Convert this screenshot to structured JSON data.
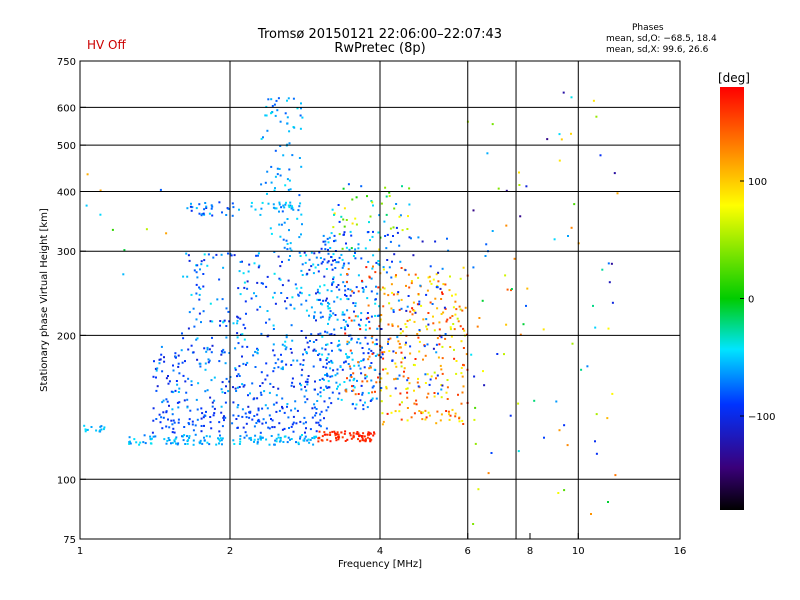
{
  "header": {
    "status": "HV Off",
    "status_color": "#cc0000",
    "title_line1": "Tromsø 20150121 22:06:00–22:07:43",
    "title_line2": "RwPretec (8p)",
    "phases_title": "Phases",
    "phases_line1": "mean, sd,O: −68.5, 18.4",
    "phases_line2": "mean, sd,X:  99.6, 26.6"
  },
  "colorbar": {
    "unit_label": "[deg]",
    "ticks": [
      {
        "value": 100,
        "label": "100"
      },
      {
        "value": 0,
        "label": "0"
      },
      {
        "value": -100,
        "label": "−100"
      }
    ],
    "range": [
      -180,
      180
    ]
  },
  "chart_data": {
    "type": "scatter",
    "xlabel": "Frequency [MHz]",
    "ylabel": "Stationary phase Virtual Height [km]",
    "x_scale": "log",
    "y_scale": "log",
    "xlim": [
      1,
      16
    ],
    "ylim": [
      75,
      750
    ],
    "xticks": [
      {
        "value": 1,
        "label": "1"
      },
      {
        "value": 2,
        "label": "2"
      },
      {
        "value": 4,
        "label": "4"
      },
      {
        "value": 6,
        "label": "6"
      },
      {
        "value": 8,
        "label": "8"
      },
      {
        "value": 10,
        "label": "10"
      },
      {
        "value": 16,
        "label": "16"
      }
    ],
    "yticks": [
      {
        "value": 75,
        "label": "75"
      },
      {
        "value": 100,
        "label": "100"
      },
      {
        "value": 200,
        "label": "200"
      },
      {
        "value": 300,
        "label": "300"
      },
      {
        "value": 400,
        "label": "400"
      },
      {
        "value": 500,
        "label": "500"
      },
      {
        "value": 600,
        "label": "600"
      },
      {
        "value": 750,
        "label": "750"
      }
    ],
    "grid_x": [
      2,
      4,
      6,
      7.5,
      10
    ],
    "grid_y": [
      100,
      200,
      300,
      400,
      500,
      600
    ],
    "grid": true,
    "clusters": [
      {
        "f": [
          1.0,
          1.12
        ],
        "h": [
          125,
          130
        ],
        "phase": [
          -70,
          -40
        ],
        "n": 15
      },
      {
        "f": [
          1.25,
          3.0
        ],
        "h": [
          118,
          124
        ],
        "phase": [
          -75,
          -40
        ],
        "n": 140
      },
      {
        "f": [
          3.0,
          3.9
        ],
        "h": [
          120,
          126
        ],
        "phase": [
          150,
          175
        ],
        "n": 80
      },
      {
        "f": [
          1.4,
          3.2
        ],
        "h": [
          125,
          140
        ],
        "phase": [
          -100,
          -70
        ],
        "n": 130
      },
      {
        "f": [
          1.4,
          3.3
        ],
        "h": [
          140,
          190
        ],
        "phase": [
          -110,
          -50
        ],
        "n": 260
      },
      {
        "f": [
          1.6,
          3.5
        ],
        "h": [
          190,
          300
        ],
        "phase": [
          -110,
          -40
        ],
        "n": 240
      },
      {
        "f": [
          2.3,
          2.8
        ],
        "h": [
          300,
          640
        ],
        "phase": [
          -80,
          -40
        ],
        "n": 90
      },
      {
        "f": [
          1.6,
          2.1
        ],
        "h": [
          355,
          380
        ],
        "phase": [
          -100,
          -50
        ],
        "n": 30
      },
      {
        "f": [
          2.2,
          2.8
        ],
        "h": [
          365,
          380
        ],
        "phase": [
          -70,
          -40
        ],
        "n": 25
      },
      {
        "f": [
          3.0,
          4.0
        ],
        "h": [
          140,
          330
        ],
        "phase": [
          -100,
          -40
        ],
        "n": 260
      },
      {
        "f": [
          3.4,
          4.0
        ],
        "h": [
          150,
          280
        ],
        "phase": [
          120,
          175
        ],
        "n": 50
      },
      {
        "f": [
          4.0,
          6.0
        ],
        "h": [
          130,
          280
        ],
        "phase": [
          60,
          170
        ],
        "n": 260
      },
      {
        "f": [
          4.0,
          5.5
        ],
        "h": [
          150,
          330
        ],
        "phase": [
          -120,
          -60
        ],
        "n": 80
      },
      {
        "f": [
          3.2,
          4.6
        ],
        "h": [
          300,
          420
        ],
        "phase": [
          -100,
          90
        ],
        "n": 60
      },
      {
        "f": [
          6.0,
          12.0
        ],
        "h": [
          80,
          650
        ],
        "phase": [
          -140,
          150
        ],
        "n": 90
      },
      {
        "f": [
          1.0,
          1.5
        ],
        "h": [
          250,
          450
        ],
        "phase": [
          -80,
          120
        ],
        "n": 10
      }
    ]
  }
}
